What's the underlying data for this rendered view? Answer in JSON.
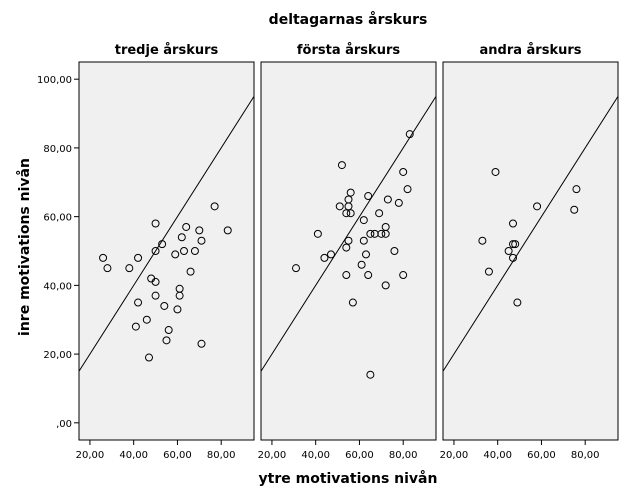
{
  "chart_data": {
    "type": "scatter",
    "title": "deltagarnas årskurs",
    "xlabel": "ytre motivations nivån",
    "ylabel": "inre motivations nivån",
    "x_ticks": [
      "20,00",
      "40,00",
      "60,00",
      "80,00"
    ],
    "y_ticks": [
      ",00",
      "20,00",
      "40,00",
      "60,00",
      "80,00",
      "100,00"
    ],
    "xlim": [
      15,
      95
    ],
    "ylim": [
      -5,
      105
    ],
    "reference_line": "y = x",
    "panel_background": "#f0f0f0",
    "marker": "open-circle",
    "panels": [
      {
        "title": "tredje årskurs",
        "points": [
          [
            26,
            48
          ],
          [
            28,
            45
          ],
          [
            38,
            45
          ],
          [
            42,
            48
          ],
          [
            42,
            35
          ],
          [
            41,
            28
          ],
          [
            46,
            30
          ],
          [
            47,
            19
          ],
          [
            48,
            42
          ],
          [
            50,
            50
          ],
          [
            50,
            41
          ],
          [
            50,
            37
          ],
          [
            50,
            58
          ],
          [
            53,
            52
          ],
          [
            54,
            34
          ],
          [
            55,
            24
          ],
          [
            56,
            27
          ],
          [
            59,
            49
          ],
          [
            60,
            33
          ],
          [
            61,
            39
          ],
          [
            61,
            37
          ],
          [
            62,
            54
          ],
          [
            63,
            50
          ],
          [
            64,
            57
          ],
          [
            66,
            44
          ],
          [
            68,
            50
          ],
          [
            70,
            56
          ],
          [
            71,
            53
          ],
          [
            71,
            23
          ],
          [
            77,
            63
          ],
          [
            83,
            56
          ]
        ]
      },
      {
        "title": "första årskurs",
        "points": [
          [
            31,
            45
          ],
          [
            41,
            55
          ],
          [
            44,
            48
          ],
          [
            47,
            49
          ],
          [
            51,
            63
          ],
          [
            52,
            75
          ],
          [
            54,
            43
          ],
          [
            54,
            51
          ],
          [
            54,
            61
          ],
          [
            55,
            65
          ],
          [
            55,
            63
          ],
          [
            55,
            53
          ],
          [
            56,
            67
          ],
          [
            56,
            61
          ],
          [
            57,
            35
          ],
          [
            61,
            46
          ],
          [
            62,
            53
          ],
          [
            62,
            59
          ],
          [
            63,
            49
          ],
          [
            64,
            43
          ],
          [
            64,
            66
          ],
          [
            65,
            14
          ],
          [
            65,
            55
          ],
          [
            67,
            55
          ],
          [
            69,
            61
          ],
          [
            70,
            55
          ],
          [
            72,
            40
          ],
          [
            72,
            57
          ],
          [
            72,
            55
          ],
          [
            73,
            65
          ],
          [
            76,
            50
          ],
          [
            78,
            64
          ],
          [
            80,
            73
          ],
          [
            80,
            43
          ],
          [
            82,
            68
          ],
          [
            83,
            84
          ]
        ]
      },
      {
        "title": "andra årskurs",
        "points": [
          [
            33,
            53
          ],
          [
            36,
            44
          ],
          [
            39,
            73
          ],
          [
            45,
            50
          ],
          [
            47,
            58
          ],
          [
            47,
            52
          ],
          [
            47,
            48
          ],
          [
            48,
            52
          ],
          [
            49,
            35
          ],
          [
            58,
            63
          ],
          [
            75,
            62
          ],
          [
            76,
            68
          ]
        ]
      }
    ]
  }
}
